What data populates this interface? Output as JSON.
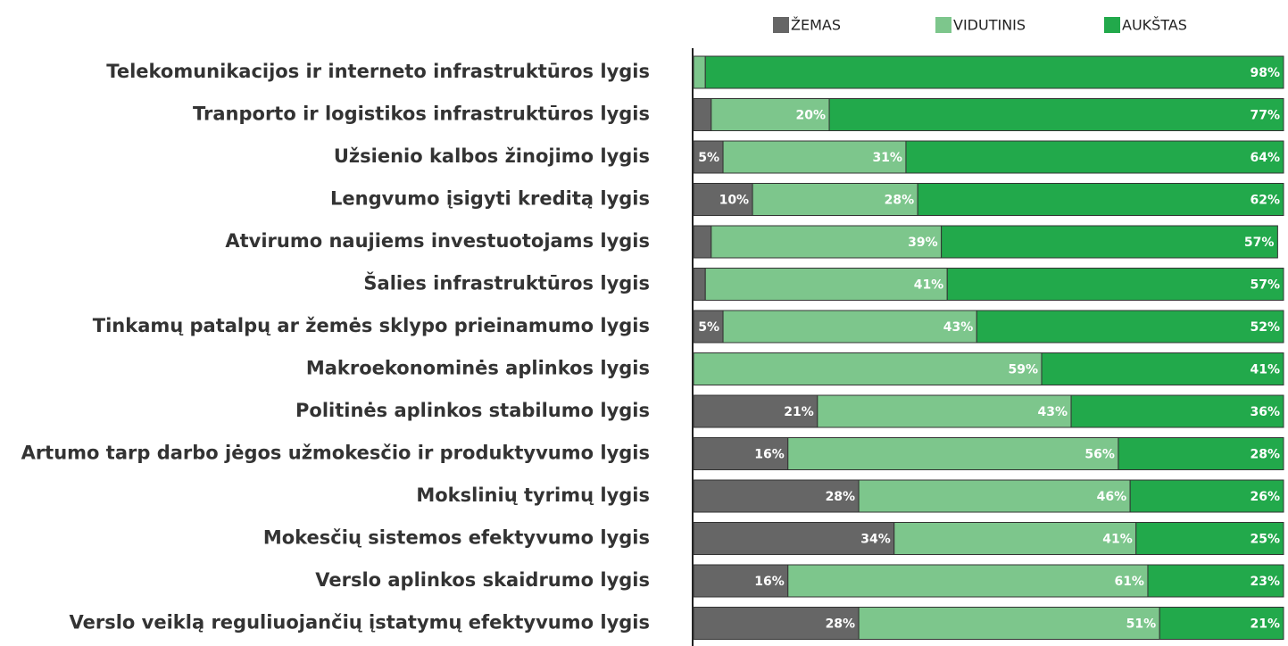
{
  "chart_data": {
    "type": "stacked-bar-horizontal",
    "categories": [
      "Telekomunikacijos ir interneto infrastruktūros lygis",
      "Tranporto ir logistikos infrastruktūros lygis",
      "Užsienio kalbos žinojimo lygis",
      "Lengvumo įsigyti kreditą lygis",
      "Atvirumo naujiems investuotojams lygis",
      "Šalies infrastruktūros lygis",
      "Tinkamų patalpų ar žemės sklypo prieinamumo lygis",
      "Makroekonominės aplinkos lygis",
      "Politinės aplinkos stabilumo lygis",
      "Artumo tarp darbo jėgos užmokesčio ir produktyvumo lygis",
      "Mokslinių tyrimų lygis",
      "Mokesčių sistemos efektyvumo lygis",
      "Verslo aplinkos skaidrumo lygis",
      "Verslo veiklą reguliuojančių įstatymų efektyvumo lygis"
    ],
    "series": [
      {
        "name": "ŽEMAS",
        "color": "#666666",
        "values": [
          0,
          3,
          5,
          10,
          3,
          2,
          5,
          0,
          21,
          16,
          28,
          34,
          16,
          28
        ],
        "value_labels": [
          null,
          null,
          "5%",
          "10%",
          null,
          null,
          "5%",
          null,
          "21%",
          "16%",
          "28%",
          "34%",
          "16%",
          "28%"
        ]
      },
      {
        "name": "VIDUTINIS",
        "color": "#7dc68c",
        "values": [
          2,
          20,
          31,
          28,
          39,
          41,
          43,
          59,
          43,
          56,
          46,
          41,
          61,
          51
        ],
        "value_labels": [
          null,
          "20%",
          "31%",
          "28%",
          "39%",
          "41%",
          "43%",
          "59%",
          "43%",
          "56%",
          "46%",
          "41%",
          "61%",
          "51%"
        ]
      },
      {
        "name": "AUKŠTAS",
        "color": "#22a94b",
        "values": [
          98,
          77,
          64,
          62,
          57,
          57,
          52,
          41,
          36,
          28,
          26,
          25,
          23,
          21
        ],
        "value_labels": [
          "98%",
          "77%",
          "64%",
          "62%",
          "57%",
          "57%",
          "52%",
          "41%",
          "36%",
          "28%",
          "26%",
          "25%",
          "23%",
          "21%"
        ]
      }
    ],
    "xlim": [
      0,
      100
    ],
    "legend": "top"
  }
}
